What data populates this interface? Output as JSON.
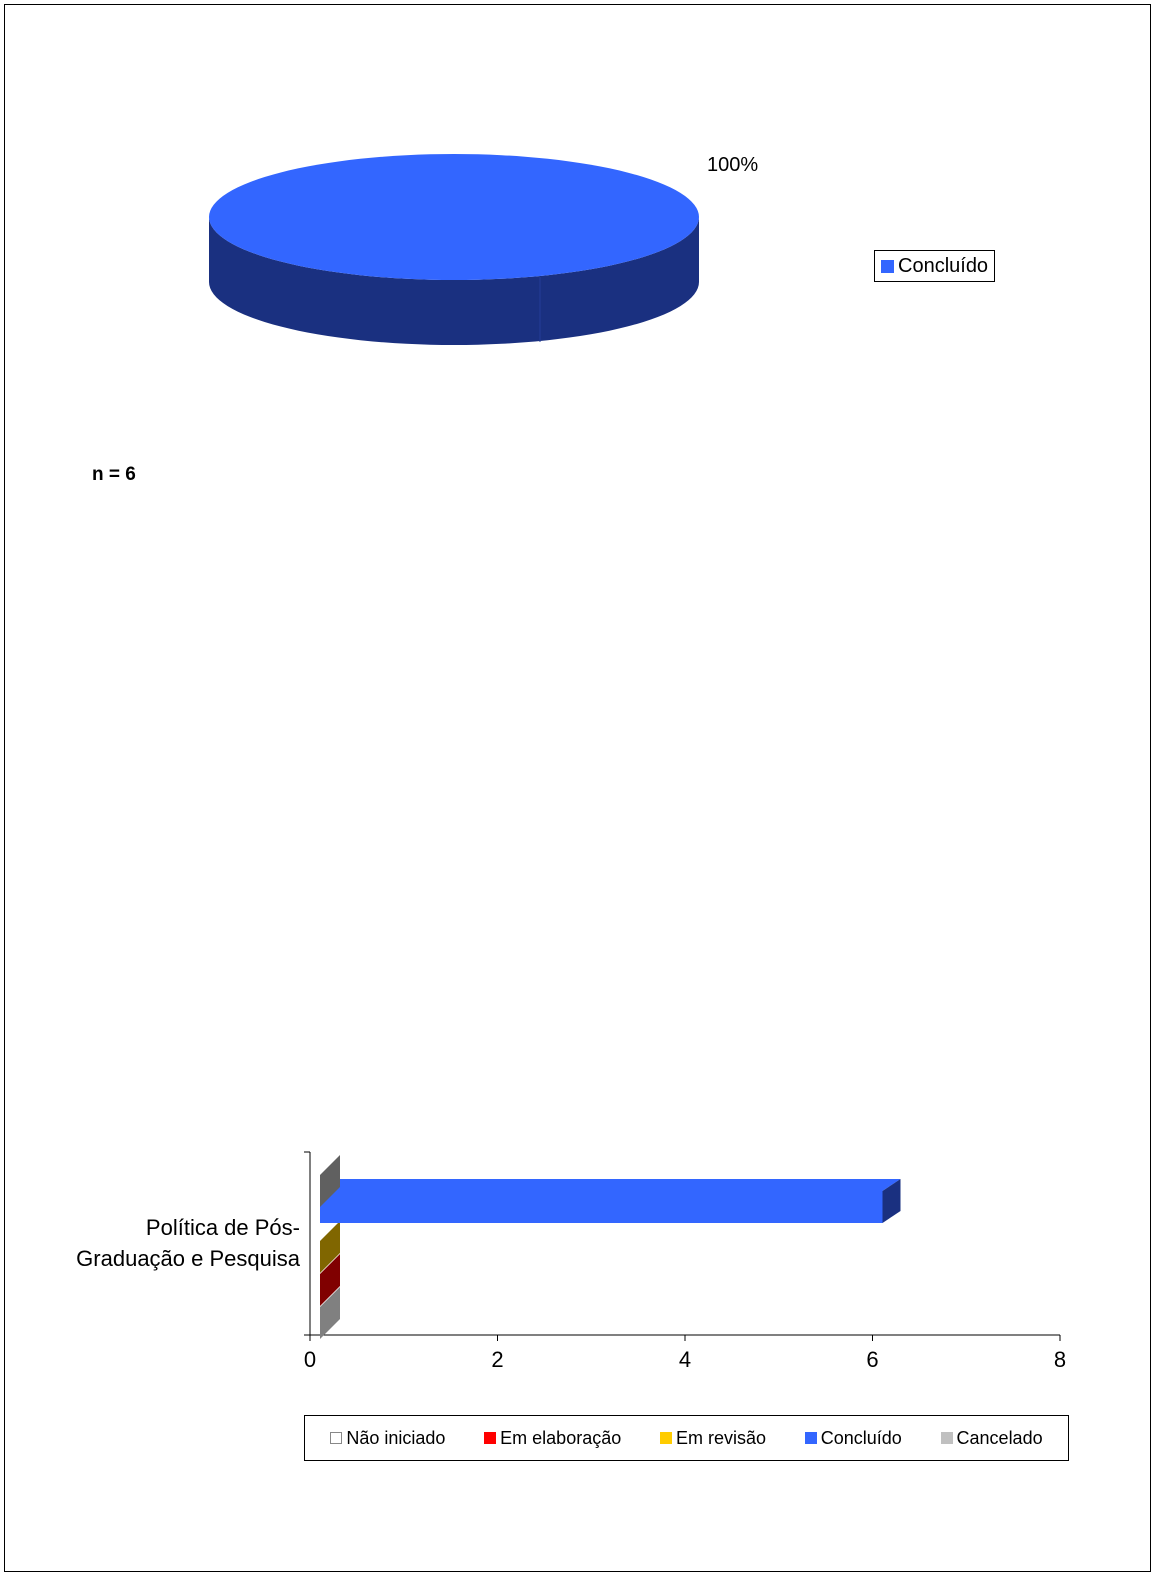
{
  "pie_chart": {
    "slice_label": "100%",
    "legend_label": "Concluído",
    "n_label": "n = 6"
  },
  "bar_chart": {
    "category_line1": "Política de Pós-",
    "category_line2": "Graduação e Pesquisa",
    "x_ticks": [
      "0",
      "2",
      "4",
      "6",
      "8"
    ],
    "legend": [
      {
        "label": "Não iniciado",
        "color": "#ffffff"
      },
      {
        "label": "Em elaboração",
        "color": "#ff0000"
      },
      {
        "label": "Em revisão",
        "color": "#ffcc00"
      },
      {
        "label": "Concluído",
        "color": "#3366ff"
      },
      {
        "label": "Cancelado",
        "color": "#c0c0c0"
      }
    ]
  },
  "chart_data": [
    {
      "type": "pie",
      "labels": [
        "Concluído"
      ],
      "values": [
        100
      ],
      "data_labels": [
        "100%"
      ],
      "colors": [
        "#3366ff"
      ],
      "legend": "right"
    },
    {
      "type": "bar",
      "orientation": "horizontal",
      "categories": [
        "Política de Pós-Graduação e Pesquisa"
      ],
      "series": [
        {
          "name": "Não iniciado",
          "values": [
            0
          ],
          "color": "#ffffff"
        },
        {
          "name": "Em elaboração",
          "values": [
            0
          ],
          "color": "#ff0000"
        },
        {
          "name": "Em revisão",
          "values": [
            0
          ],
          "color": "#ffcc00"
        },
        {
          "name": "Concluído",
          "values": [
            6
          ],
          "color": "#3366ff"
        },
        {
          "name": "Cancelado",
          "values": [
            0
          ],
          "color": "#c0c0c0"
        }
      ],
      "xlim": [
        0,
        8
      ],
      "x_ticks": [
        0,
        2,
        4,
        6,
        8
      ],
      "legend": "bottom"
    }
  ]
}
